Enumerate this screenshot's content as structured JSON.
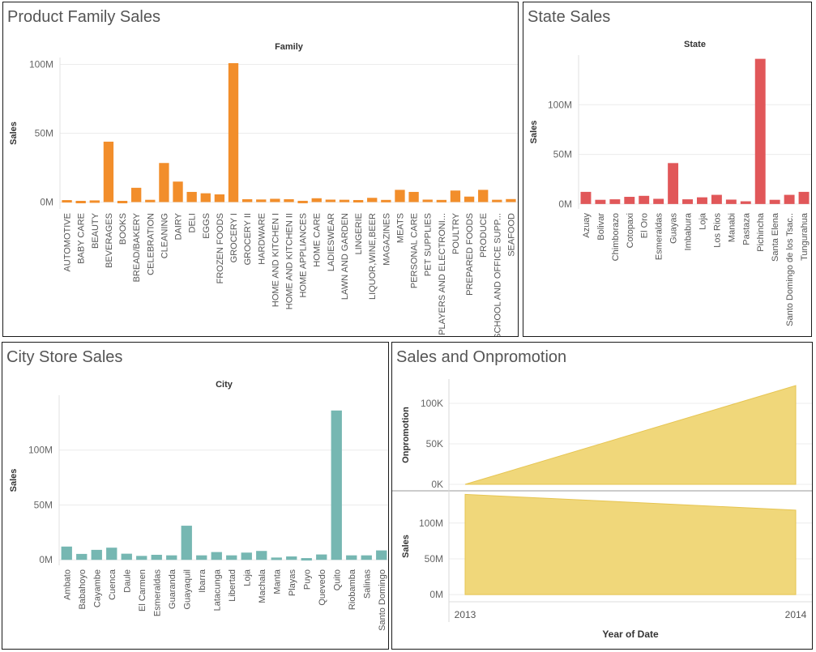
{
  "colors": {
    "family": "#f28e2b",
    "state": "#e15759",
    "city": "#76b7b2",
    "area": "#f0d77a",
    "area_stroke": "#e6c552"
  },
  "panels": {
    "family": {
      "title": "Product Family Sales"
    },
    "state": {
      "title": "State Sales"
    },
    "city": {
      "title": "City Store Sales"
    },
    "promo": {
      "title": "Sales and Onpromotion"
    }
  },
  "chart_data": [
    {
      "id": "family",
      "type": "bar",
      "title": "Product Family Sales",
      "header": "Family",
      "ylabel": "Sales",
      "ylim": [
        -5000000,
        105000000
      ],
      "yticks": [
        0,
        50000000,
        100000000
      ],
      "ytick_labels": [
        "0M",
        "50M",
        "100M"
      ],
      "categories": [
        "AUTOMOTIVE",
        "BABY CARE",
        "BEAUTY",
        "BEVERAGES",
        "BOOKS",
        "BREAD/BAKERY",
        "CELEBRATION",
        "CLEANING",
        "DAIRY",
        "DELI",
        "EGGS",
        "FROZEN FOODS",
        "GROCERY I",
        "GROCERY II",
        "HARDWARE",
        "HOME AND KITCHEN I",
        "HOME AND KITCHEN II",
        "HOME APPLIANCES",
        "HOME CARE",
        "LADIESWEAR",
        "LAWN AND GARDEN",
        "LINGERIE",
        "LIQUOR,WINE,BEER",
        "MAGAZINES",
        "MEATS",
        "PERSONAL CARE",
        "PET SUPPLIES",
        "PLAYERS AND ELECTRONI...",
        "POULTRY",
        "PREPARED FOODS",
        "PRODUCE",
        "SCHOOL AND OFFICE SUPP...",
        "SEAFOOD"
      ],
      "values": [
        550000,
        10000,
        340000,
        43000000,
        7000,
        9500000,
        760000,
        27500000,
        14000000,
        6500000,
        5500000,
        4700000,
        100000000,
        1200000,
        1000000,
        1500000,
        1200000,
        38000,
        1900000,
        900000,
        800000,
        600000,
        2200000,
        700000,
        8000000,
        6500000,
        900000,
        700000,
        7500000,
        3100000,
        8000000,
        800000,
        1300000
      ]
    },
    {
      "id": "state",
      "type": "bar",
      "title": "State Sales",
      "header": "State",
      "ylabel": "Sales",
      "ylim": [
        -5000000,
        150000000
      ],
      "yticks": [
        0,
        50000000,
        100000000
      ],
      "ytick_labels": [
        "0M",
        "50M",
        "100M"
      ],
      "categories": [
        "Azuay",
        "Bolivar",
        "Chimborazo",
        "Cotopaxi",
        "El Oro",
        "Esmeraldas",
        "Guayas",
        "Imbabura",
        "Loja",
        "Los Rios",
        "Manabi",
        "Pastaza",
        "Pichincha",
        "Santa Elena",
        "Santo Domingo de los Tsac..",
        "Tungurahua"
      ],
      "values": [
        11000000,
        3000000,
        3500000,
        6000000,
        7000000,
        4000000,
        40000000,
        3500000,
        5500000,
        8000000,
        3200000,
        1500000,
        145000000,
        3000000,
        8000000,
        11000000
      ]
    },
    {
      "id": "city",
      "type": "bar",
      "title": "City Store Sales",
      "header": "City",
      "ylabel": "Sales",
      "ylim": [
        -5000000,
        150000000
      ],
      "yticks": [
        0,
        50000000,
        100000000
      ],
      "ytick_labels": [
        "0M",
        "50M",
        "100M"
      ],
      "categories": [
        "Ambato",
        "Babahoyo",
        "Cayambe",
        "Cuenca",
        "Daule",
        "El Carmen",
        "Esmeraldas",
        "Guaranda",
        "Guayaquil",
        "Ibarra",
        "Latacunga",
        "Libertad",
        "Loja",
        "Machala",
        "Manta",
        "Playas",
        "Puyo",
        "Quevedo",
        "Quito",
        "Riobamba",
        "Salinas",
        "Santo Domingo"
      ],
      "values": [
        11000000,
        4300000,
        8000000,
        10000000,
        4500000,
        2500000,
        3500000,
        3000000,
        30000000,
        3000000,
        6000000,
        3000000,
        5500000,
        7000000,
        1000000,
        2000000,
        500000,
        3800000,
        135000000,
        3000000,
        3000000,
        7500000
      ]
    },
    {
      "id": "promo",
      "type": "area",
      "title": "Sales and Onpromotion",
      "xlabel": "Year of Date",
      "x": [
        "2013",
        "2014"
      ],
      "series": [
        {
          "name": "Onpromotion",
          "values": [
            0,
            122000
          ],
          "ylim": [
            -8000,
            130000
          ],
          "yticks": [
            0,
            50000,
            100000
          ],
          "ytick_labels": [
            "0K",
            "50K",
            "100K"
          ]
        },
        {
          "name": "Sales",
          "values": [
            140000000,
            118000000
          ],
          "ylim": [
            -10000000,
            145000000
          ],
          "yticks": [
            0,
            50000000,
            100000000
          ],
          "ytick_labels": [
            "0M",
            "50M",
            "100M"
          ]
        }
      ]
    }
  ]
}
